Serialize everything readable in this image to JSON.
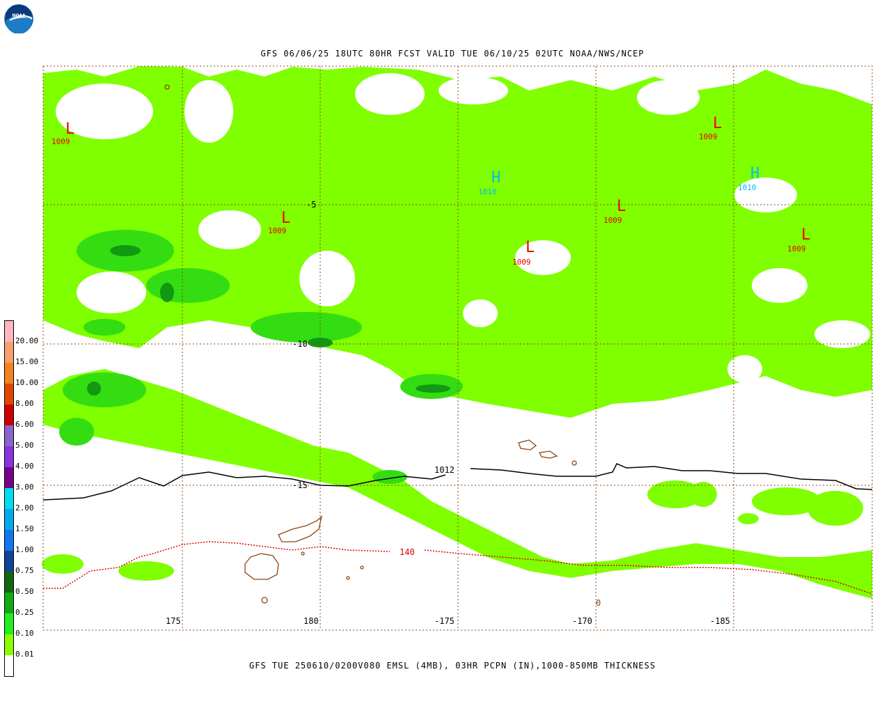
{
  "logo": {
    "icon": "noaa-logo-icon",
    "text": "NOAA"
  },
  "titles": {
    "top": "GFS 06/06/25 18UTC 80HR FCST VALID TUE 06/10/25 02UTC NOAA/NWS/NCEP",
    "bottom": "GFS TUE 250610/0200V080 EMSL (4MB), 03HR PCPN (IN),1000-850MB THICKNESS"
  },
  "map": {
    "longitude_labels": [
      "175",
      "180",
      "-175",
      "-170",
      "-185"
    ],
    "latitude_labels": [
      "-5",
      "-10",
      "-15"
    ],
    "stray_label": "0",
    "isobar_label": "1012",
    "thickness_label": "140",
    "pressure_centers": [
      {
        "letter": "L",
        "value": "1009",
        "type": "low"
      },
      {
        "letter": "L",
        "value": "1009",
        "type": "low"
      },
      {
        "letter": "L",
        "value": "1009",
        "type": "low"
      },
      {
        "letter": "L",
        "value": "1009",
        "type": "low"
      },
      {
        "letter": "L",
        "value": "1009",
        "type": "low"
      },
      {
        "letter": "L",
        "value": "1009",
        "type": "low"
      },
      {
        "letter": "H",
        "value": "1010",
        "type": "high"
      },
      {
        "letter": "H",
        "value": "1010",
        "type": "high"
      }
    ],
    "colors": {
      "precip_light": "#7fff00",
      "precip_medium": "#33dd11",
      "precip_heavy": "#119911",
      "grid": "#8b4513",
      "low": "#ee0000",
      "high": "#00bbee",
      "isobar": "#000000",
      "thickness": "#dd0000",
      "land": "#8b4513"
    }
  },
  "legend": {
    "labels": [
      "20.00",
      "15.00",
      "10.00",
      "8.00",
      "6.00",
      "5.00",
      "4.00",
      "3.00",
      "2.00",
      "1.50",
      "1.00",
      "0.75",
      "0.50",
      "0.25",
      "0.10",
      "0.01"
    ],
    "colors": [
      "#ffb6c1",
      "#f7a070",
      "#f58220",
      "#e04800",
      "#cc0000",
      "#8866cc",
      "#8833dd",
      "#770088",
      "#00ddee",
      "#00aaee",
      "#1177ee",
      "#114499",
      "#116611",
      "#11aa11",
      "#22ee22",
      "#88ff00",
      "#ffffff"
    ]
  }
}
